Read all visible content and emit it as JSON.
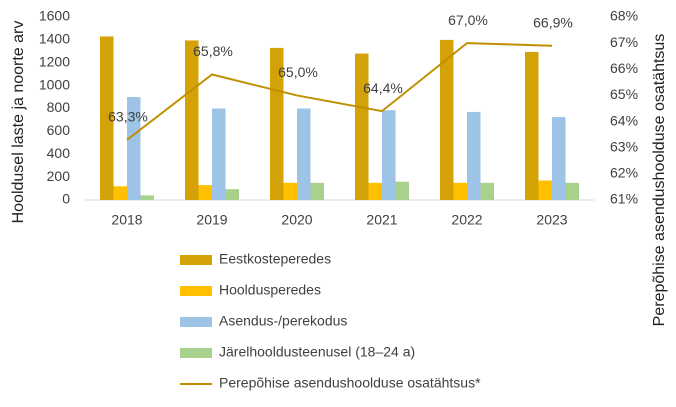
{
  "chart_data": {
    "type": "bar",
    "categories": [
      "2018",
      "2019",
      "2020",
      "2021",
      "2022",
      "2023"
    ],
    "ylabel": "Hooldusel laste ja noorte arv",
    "y2label": "Perepõhise asendushoolduse osatähtsus",
    "ylim": [
      0,
      1600
    ],
    "yticks": [
      0,
      200,
      400,
      600,
      800,
      1000,
      1200,
      1400,
      1600
    ],
    "y2lim": [
      61,
      68
    ],
    "y2ticks": [
      {
        "value": 61,
        "label": "61%"
      },
      {
        "value": 62,
        "label": "62%"
      },
      {
        "value": 63,
        "label": "63%"
      },
      {
        "value": 64,
        "label": "64%"
      },
      {
        "value": 65,
        "label": "65%"
      },
      {
        "value": 66,
        "label": "66%"
      },
      {
        "value": 67,
        "label": "67%"
      },
      {
        "value": 68,
        "label": "68%"
      }
    ],
    "grid": false,
    "legend": "bottom",
    "series": [
      {
        "name": "Eestkosteperedes",
        "color": "#D4A106",
        "values": [
          1430,
          1395,
          1330,
          1280,
          1400,
          1295
        ]
      },
      {
        "name": "Hooldusperedes",
        "color": "#FFC000",
        "values": [
          120,
          130,
          150,
          150,
          150,
          170
        ]
      },
      {
        "name": "Asendus-/perekodus",
        "color": "#9DC3E6",
        "values": [
          900,
          800,
          800,
          785,
          770,
          725
        ]
      },
      {
        "name": "Järelhooldusteenusel (18–24 a)",
        "color": "#A9D18E",
        "values": [
          40,
          95,
          150,
          160,
          150,
          150
        ]
      },
      {
        "name": "Perepõhise asendushoolduse osatähtsus*",
        "color": "#BF9000",
        "type": "line",
        "axis": "y2",
        "values": [
          63.3,
          65.8,
          65.0,
          64.4,
          67.0,
          66.9
        ],
        "value_labels": [
          "63,3%",
          "65,8%",
          "65,0%",
          "64,4%",
          "67,0%",
          "66,9%"
        ]
      }
    ]
  }
}
